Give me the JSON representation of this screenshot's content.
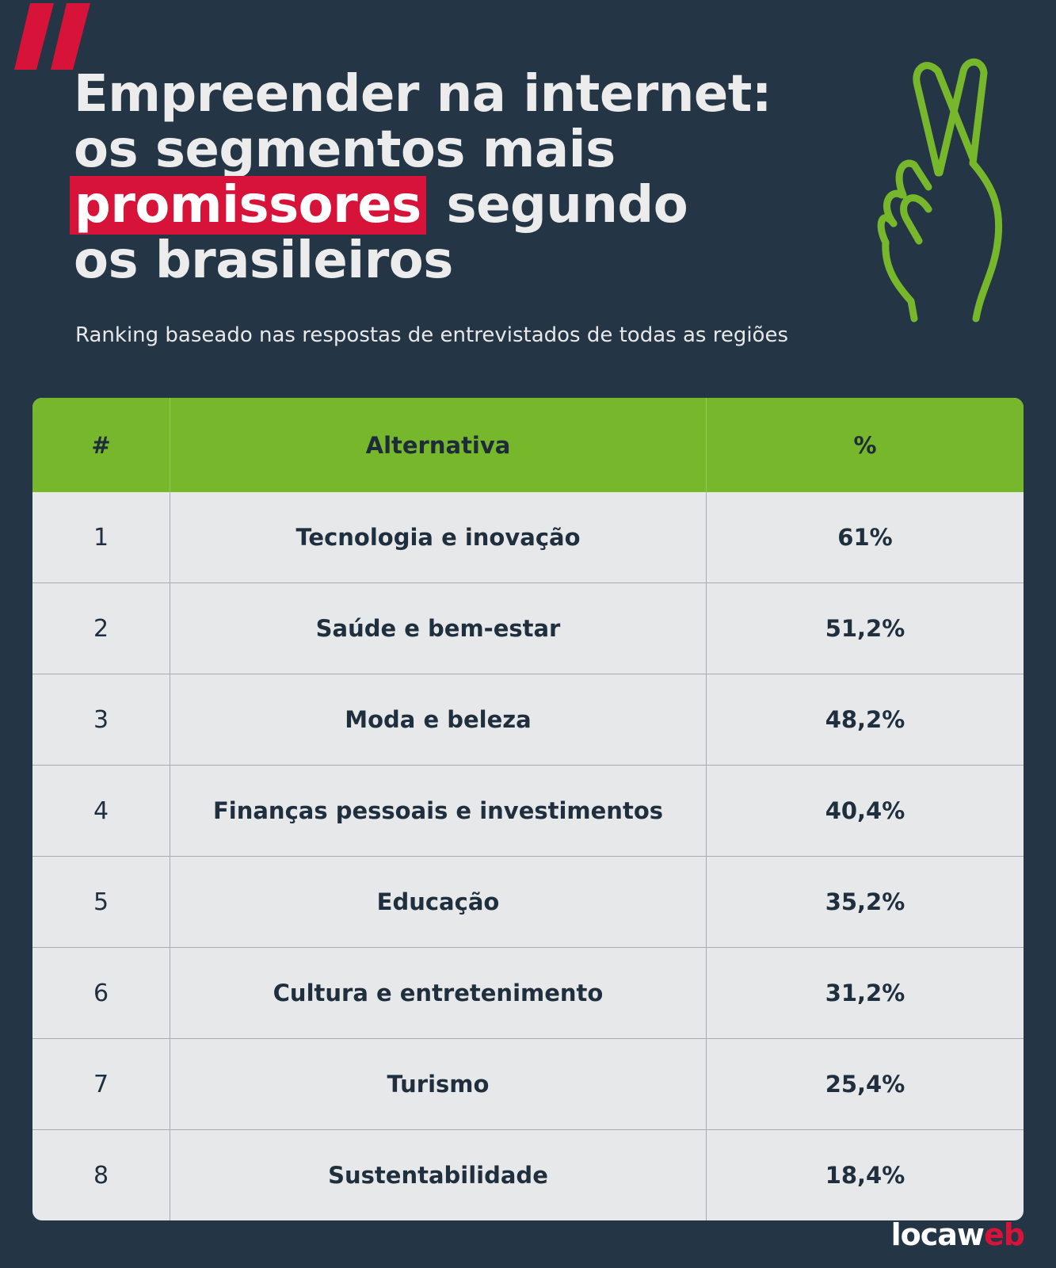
{
  "header": {
    "title_line1": "Empreender na internet:",
    "title_line2": "os segmentos mais",
    "title_highlight": "promissores",
    "title_line3_rest": " segundo",
    "title_line4": "os brasileiros",
    "subtitle": "Ranking baseado nas respostas de entrevistados de todas as regiões",
    "decor_icon": "crossed-fingers-icon",
    "quote_icon": "quote-mark-icon"
  },
  "table": {
    "columns": [
      "#",
      "Alternativa",
      "%"
    ],
    "rows": [
      {
        "rank": "1",
        "alternativa": "Tecnologia e inovação",
        "percent": "61%"
      },
      {
        "rank": "2",
        "alternativa": "Saúde e bem-estar",
        "percent": "51,2%"
      },
      {
        "rank": "3",
        "alternativa": "Moda e beleza",
        "percent": "48,2%"
      },
      {
        "rank": "4",
        "alternativa": "Finanças pessoais e investimentos",
        "percent": "40,4%"
      },
      {
        "rank": "5",
        "alternativa": "Educação",
        "percent": "35,2%"
      },
      {
        "rank": "6",
        "alternativa": "Cultura e entretenimento",
        "percent": "31,2%"
      },
      {
        "rank": "7",
        "alternativa": "Turismo",
        "percent": "25,4%"
      },
      {
        "rank": "8",
        "alternativa": "Sustentabilidade",
        "percent": "18,4%"
      }
    ]
  },
  "footer": {
    "logo_part1": "locaw",
    "logo_part2": "eb"
  },
  "colors": {
    "background": "#243545",
    "accent_red": "#d7133a",
    "accent_green": "#77b72c",
    "table_bg": "#e7e8ea"
  }
}
